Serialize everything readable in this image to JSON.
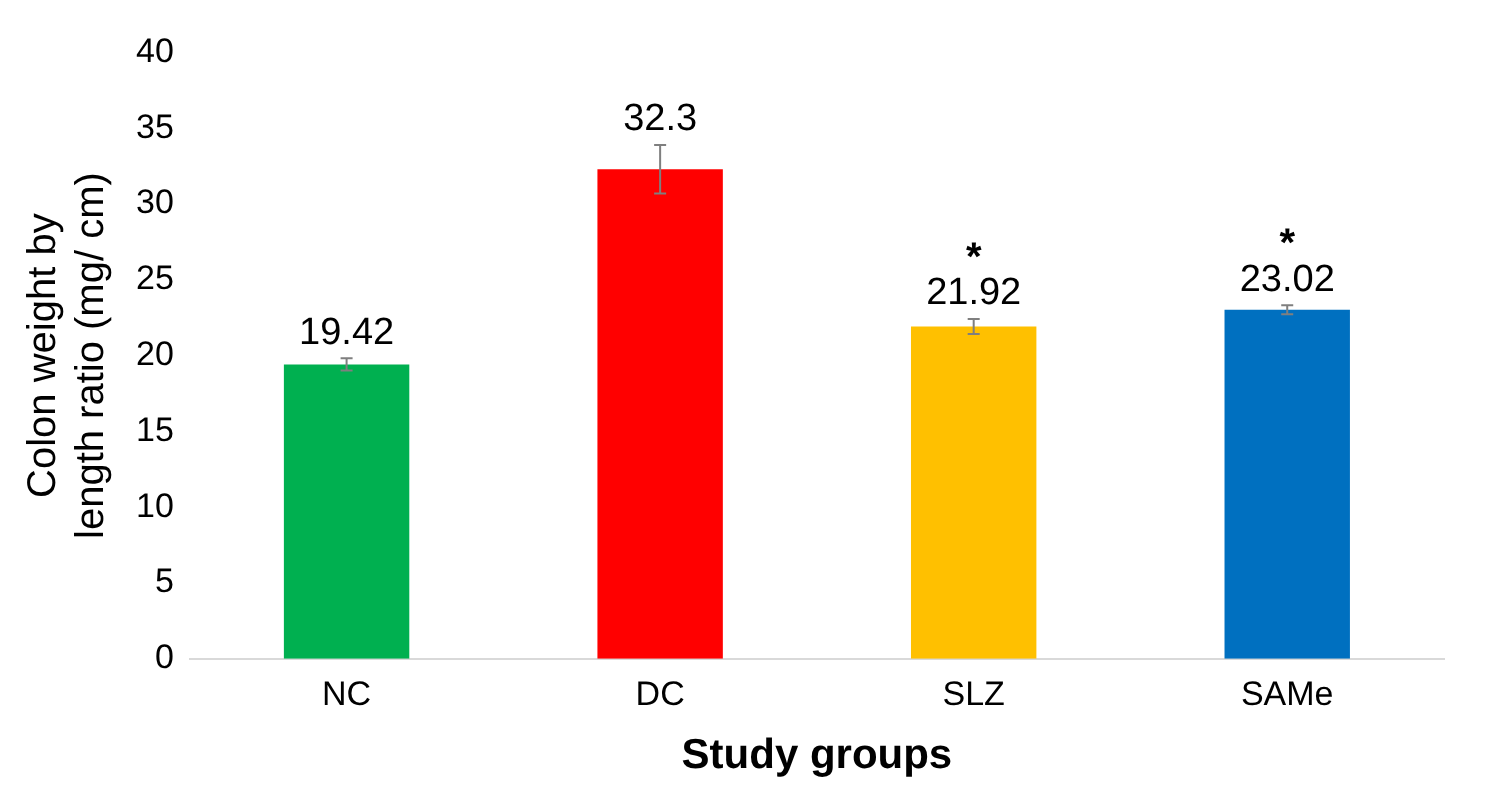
{
  "chart_data": {
    "type": "bar",
    "xlabel": "Study groups",
    "ylabel": "Colon weight by length ratio (mg/ cm)",
    "categories": [
      "NC",
      "DC",
      "SLZ",
      "SAMe"
    ],
    "values": [
      19.42,
      32.3,
      21.92,
      23.02
    ],
    "colors": [
      "#00b050",
      "#ff0000",
      "#ffc000",
      "#0070c0"
    ],
    "errors": [
      0.4,
      1.6,
      0.5,
      0.3
    ],
    "data_labels": true,
    "annotations": [
      {
        "text": "*",
        "x": "SLZ",
        "y": 22.42
      },
      {
        "text": "*",
        "x": "SAMe",
        "y": 23.32
      }
    ],
    "ylim": [
      0,
      40
    ],
    "yticks": [
      0,
      5,
      10,
      15,
      20,
      25,
      30,
      35,
      40
    ],
    "grid": false,
    "legend": false
  }
}
